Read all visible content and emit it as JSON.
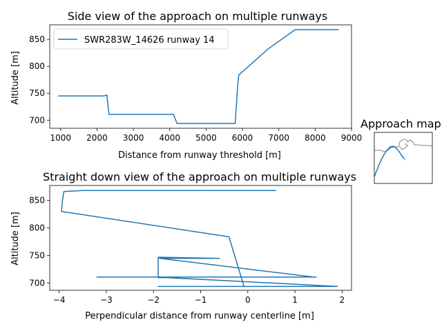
{
  "chart_data": [
    {
      "type": "line",
      "title": "Side view of the approach on multiple runways",
      "xlabel": "Distance from runway threshold [m]",
      "ylabel": "Altitude [m]",
      "xlim": [
        700,
        9000
      ],
      "ylim": [
        685,
        877
      ],
      "xticks": [
        1000,
        2000,
        3000,
        4000,
        5000,
        6000,
        7000,
        8000,
        9000
      ],
      "yticks": [
        700,
        750,
        800,
        850
      ],
      "legend": "top-left",
      "grid": false,
      "series": [
        {
          "name": "SWR283W_14626 runway 14",
          "color": "#1f77b4",
          "x": [
            930,
            2200,
            2270,
            2330,
            4100,
            4200,
            5800,
            5870,
            5900,
            6700,
            7450,
            8650
          ],
          "y": [
            745,
            745,
            747,
            711,
            711,
            694,
            694,
            765,
            784,
            832,
            868,
            868
          ]
        }
      ]
    },
    {
      "type": "line",
      "title": "Straight down view of the approach on multiple runways",
      "xlabel": "Perpendicular distance from runway centerline [m]",
      "ylabel": "Altitude [m]",
      "xlim": [
        -4.2,
        2.2
      ],
      "ylim": [
        687,
        877
      ],
      "xticks": [
        -4,
        -3,
        -2,
        -1,
        0,
        1,
        2
      ],
      "yticks": [
        700,
        750,
        800,
        850
      ],
      "grid": false,
      "series": [
        {
          "color": "#1f77b4",
          "x": [
            0.6,
            -3.5,
            -3.9,
            -3.93,
            -3.95,
            -0.4,
            -0.08,
            -1.9,
            1.9,
            -1.7,
            -1.9,
            -1.9,
            -0.6,
            -1.87,
            1.4,
            -3.2,
            1.45,
            -1.9,
            -1.9
          ],
          "y": [
            868,
            868,
            866,
            850,
            830,
            784,
            694,
            694,
            694,
            710,
            710,
            747,
            745,
            745,
            711,
            711,
            711,
            711,
            747
          ]
        }
      ]
    },
    {
      "type": "line",
      "title": "Approach map",
      "series": [
        {
          "color": "#808080",
          "x": [],
          "y": []
        },
        {
          "color": "#1f77b4",
          "x": [],
          "y": []
        }
      ]
    }
  ],
  "colors": {
    "series": "#1f77b4",
    "map_outline": "#808080",
    "axis": "#000000"
  }
}
